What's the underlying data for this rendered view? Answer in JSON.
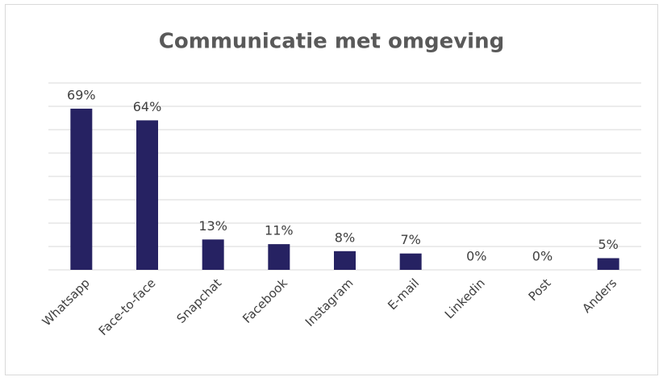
{
  "chart_data": {
    "type": "bar",
    "title": "Communicatie met omgeving",
    "categories": [
      "Whatsapp",
      "Face-to-face",
      "Snapchat",
      "Facebook",
      "Instagram",
      "E-mail",
      "Linkedin",
      "Post",
      "Anders"
    ],
    "values": [
      69,
      64,
      13,
      11,
      8,
      7,
      0,
      0,
      5
    ],
    "value_labels": [
      "69%",
      "64%",
      "13%",
      "11%",
      "8%",
      "7%",
      "0%",
      "0%",
      "5%"
    ],
    "color": "#262262",
    "ylim": [
      0,
      80
    ],
    "yticks": [
      0,
      10,
      20,
      30,
      40,
      50,
      60,
      70,
      80
    ],
    "grid": true
  }
}
